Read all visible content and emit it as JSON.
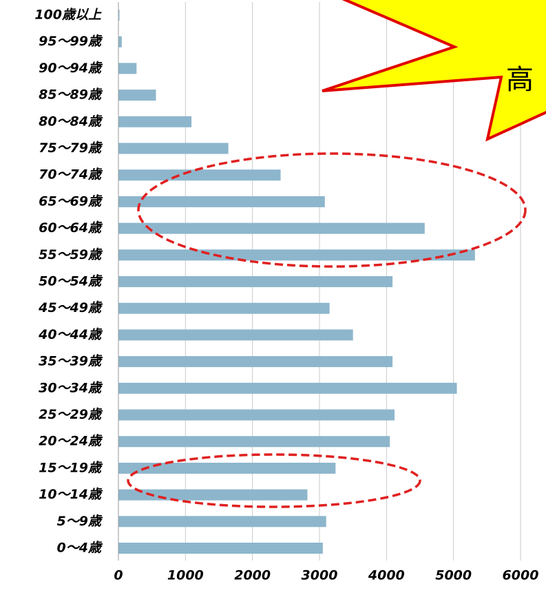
{
  "chart_data": {
    "type": "barh",
    "categories": [
      "100歳以上",
      "95〜99歳",
      "90〜94歳",
      "85〜89歳",
      "80〜84歳",
      "75〜79歳",
      "70〜74歳",
      "65〜69歳",
      "60〜64歳",
      "55〜59歳",
      "50〜54歳",
      "45〜49歳",
      "40〜44歳",
      "35〜39歳",
      "30〜34歳",
      "25〜29歳",
      "20〜24歳",
      "15〜19歳",
      "10〜14歳",
      "5〜9歳",
      "0〜4歳"
    ],
    "values": [
      15,
      50,
      270,
      560,
      1090,
      1640,
      2420,
      3080,
      4570,
      5320,
      4090,
      3150,
      3500,
      4090,
      5050,
      4120,
      4050,
      3240,
      2820,
      3100,
      3050
    ],
    "color": "#8db6cc",
    "xlim": [
      0,
      6000
    ],
    "xticks": [
      0,
      1000,
      2000,
      3000,
      4000,
      5000,
      6000
    ],
    "grid": true,
    "annotation": "高"
  }
}
